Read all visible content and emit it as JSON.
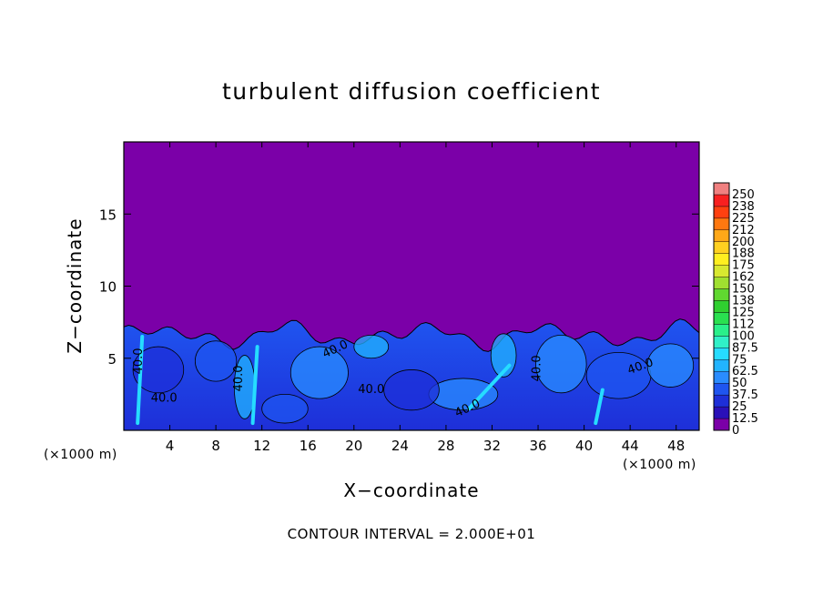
{
  "chart_data": {
    "type": "heatmap",
    "title": "turbulent diffusion coefficient",
    "xlabel": "X−coordinate",
    "ylabel": "Z−coordinate",
    "x_unit": "(×1000 m)",
    "footnote": "CONTOUR INTERVAL = 2.000E+01",
    "xlim": [
      0,
      50
    ],
    "ylim": [
      0,
      20
    ],
    "x_ticks": [
      "4",
      "8",
      "12",
      "16",
      "20",
      "24",
      "28",
      "32",
      "36",
      "40",
      "44",
      "48"
    ],
    "x_tick_values": [
      4,
      8,
      12,
      16,
      20,
      24,
      28,
      32,
      36,
      40,
      44,
      48
    ],
    "y_ticks": [
      "5",
      "10",
      "15"
    ],
    "y_tick_values": [
      5,
      10,
      15
    ],
    "colorbar": {
      "labels": [
        "0",
        "12.5",
        "25",
        "37.5",
        "50",
        "62.5",
        "75",
        "87.5",
        "100",
        "112",
        "125",
        "138",
        "150",
        "162",
        "175",
        "188",
        "200",
        "212",
        "225",
        "238",
        "250"
      ],
      "colors": [
        "#7b00a8",
        "#2a10b8",
        "#1e2fd8",
        "#1f55f0",
        "#2a8cff",
        "#22b4ff",
        "#26dcff",
        "#30f0c8",
        "#2af08a",
        "#2ae050",
        "#30d030",
        "#60d830",
        "#a0e030",
        "#d8e830",
        "#ffef20",
        "#ffd020",
        "#ffa818",
        "#ff7810",
        "#ff4010",
        "#f82020",
        "#f08080"
      ]
    },
    "contour_labels": [
      "40.0",
      "40.0",
      "40.0",
      "40.0",
      "40.0",
      "40.0",
      "40.0",
      "40.0"
    ],
    "turbulent_layer_top_z": 7.5,
    "upper_region_value": 0
  }
}
